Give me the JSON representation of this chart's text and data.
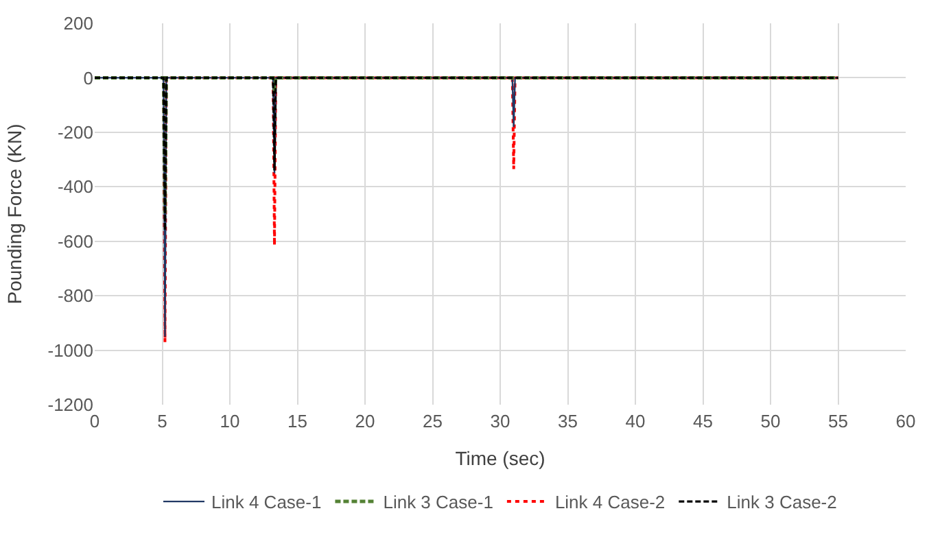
{
  "chart_data": {
    "type": "line",
    "xlabel": "Time (sec)",
    "ylabel": "Pounding Force (KN)",
    "xlim": [
      0,
      60
    ],
    "xticks": [
      0,
      5,
      10,
      15,
      20,
      25,
      30,
      35,
      40,
      45,
      50,
      55,
      60
    ],
    "ylim": [
      -1200,
      200
    ],
    "yticks": [
      -1200,
      -1000,
      -800,
      -600,
      -400,
      -200,
      0,
      200
    ],
    "grid": true,
    "legend": "bottom",
    "marker": "none",
    "series": [
      {
        "name": "Link 4 Case-1",
        "color": "#203864",
        "line_style": "solid",
        "x": [
          0,
          5.1,
          5.2,
          5.3,
          13.2,
          13.3,
          13.4,
          30.9,
          31.0,
          31.1,
          55
        ],
        "values": [
          0,
          0,
          -950,
          0,
          0,
          -350,
          0,
          0,
          -180,
          0,
          0
        ]
      },
      {
        "name": "Link 3 Case-1",
        "color": "#548235",
        "line_style": "dashed",
        "x": [
          0,
          5.1,
          5.2,
          5.3,
          13.2,
          13.3,
          13.4,
          55
        ],
        "values": [
          0,
          0,
          -500,
          0,
          0,
          -50,
          0,
          0
        ]
      },
      {
        "name": "Link 4 Case-2",
        "color": "#ff0000",
        "line_style": "dotted",
        "x": [
          0,
          5.1,
          5.2,
          5.3,
          13.2,
          13.3,
          13.4,
          30.9,
          31.0,
          31.1,
          55
        ],
        "values": [
          0,
          0,
          -970,
          0,
          0,
          -615,
          0,
          0,
          -335,
          0,
          0
        ]
      },
      {
        "name": "Link 3 Case-2",
        "color": "#000000",
        "line_style": "dashed",
        "x": [
          0,
          5.1,
          5.2,
          5.3,
          13.2,
          13.3,
          13.4,
          55
        ],
        "values": [
          0,
          0,
          -560,
          0,
          0,
          -340,
          0,
          0
        ]
      }
    ]
  }
}
